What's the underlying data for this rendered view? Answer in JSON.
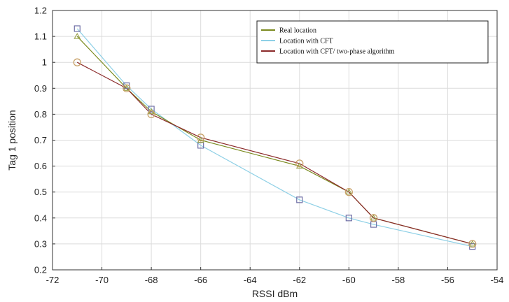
{
  "chart_data": {
    "type": "line",
    "title": "",
    "xlabel": "RSSI dBm",
    "ylabel": "Tag 1 position",
    "xlim": [
      -72,
      -54
    ],
    "ylim": [
      0.2,
      1.2
    ],
    "xticks": [
      "-72",
      "-70",
      "-68",
      "-66",
      "-64",
      "-62",
      "-60",
      "-58",
      "-56",
      "-54"
    ],
    "yticks": [
      "0.2",
      "0.3",
      "0.4",
      "0.5",
      "0.6",
      "0.7",
      "0.8",
      "0.9",
      "1",
      "1.1",
      "1.2"
    ],
    "grid": true,
    "legend_position": "top-right",
    "series": [
      {
        "name": "Real location",
        "color": "#7a8a1e",
        "marker": "triangle",
        "x": [
          -71,
          -69,
          -68,
          -66,
          -62,
          -60,
          -59,
          -55
        ],
        "y": [
          1.1,
          0.9,
          0.81,
          0.7,
          0.6,
          0.5,
          0.4,
          0.3
        ]
      },
      {
        "name": "Location with CFT",
        "color": "#8ed0e6",
        "marker": "square",
        "x": [
          -71,
          -69,
          -68,
          -66,
          -62,
          -60,
          -59,
          -55
        ],
        "y": [
          1.13,
          0.91,
          0.82,
          0.68,
          0.47,
          0.4,
          0.375,
          0.29
        ]
      },
      {
        "name": "Location with CFT/ two-phase algorithm",
        "color": "#8b2a2a",
        "marker": "circle",
        "x": [
          -71,
          -69,
          -68,
          -66,
          -62,
          -60,
          -59,
          -55
        ],
        "y": [
          1.0,
          0.9,
          0.8,
          0.71,
          0.61,
          0.5,
          0.4,
          0.3
        ]
      }
    ]
  }
}
